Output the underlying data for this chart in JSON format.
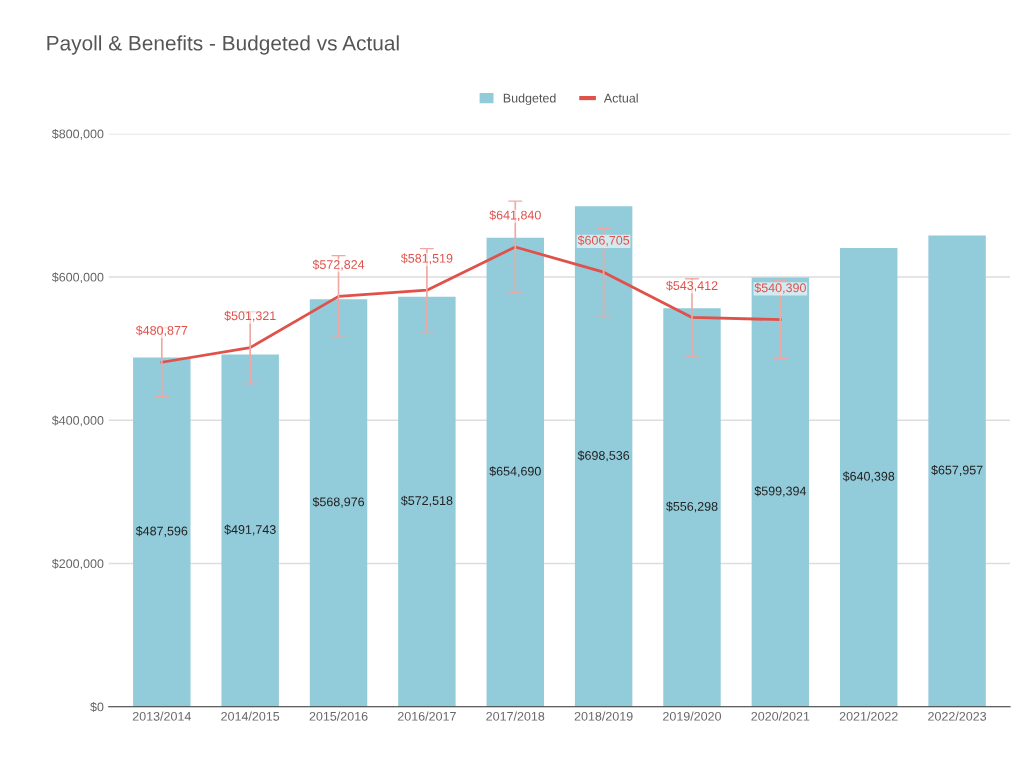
{
  "chart_data": {
    "type": "bar",
    "title": "Payoll & Benefits - Budgeted vs Actual",
    "categories": [
      "2013/2014",
      "2014/2015",
      "2015/2016",
      "2016/2017",
      "2017/2018",
      "2018/2019",
      "2019/2020",
      "2020/2021",
      "2021/2022",
      "2022/2023"
    ],
    "series": [
      {
        "name": "Budgeted",
        "color": "#92cbd9",
        "values": [
          487596,
          491743,
          568976,
          572518,
          654690,
          698536,
          556298,
          599394,
          640398,
          657957
        ],
        "value_labels": [
          "$487,596",
          "$491,743",
          "$568,976",
          "$572,518",
          "$654,690",
          "$698,536",
          "$556,298",
          "$599,394",
          "$640,398",
          "$657,957"
        ]
      },
      {
        "name": "Actual",
        "type": "line",
        "color": "#e0514a",
        "values": [
          480877,
          501321,
          572824,
          581519,
          641840,
          606705,
          543412,
          540390,
          null,
          null
        ],
        "value_labels": [
          "$480,877",
          "$501,321",
          "$572,824",
          "$581,519",
          "$641,840",
          "$606,705",
          "$543,412",
          "$540,390",
          null,
          null
        ],
        "errors": [
          48000,
          50000,
          57000,
          58000,
          64000,
          61000,
          54000,
          54000,
          null,
          null
        ]
      }
    ],
    "ylim": [
      0,
      800000
    ],
    "yticks": [
      {
        "value": 0,
        "label": "$0"
      },
      {
        "value": 200000,
        "label": "$200,000"
      },
      {
        "value": 400000,
        "label": "$400,000"
      },
      {
        "value": 600000,
        "label": "$600,000"
      },
      {
        "value": 800000,
        "label": "$800,000"
      }
    ],
    "grid": "y",
    "legend": "top",
    "marker": "none",
    "line_style": "solid"
  }
}
